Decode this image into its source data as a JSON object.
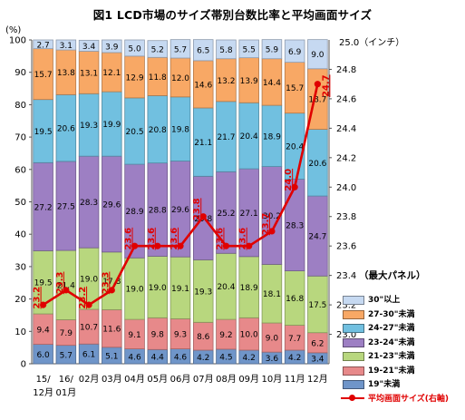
{
  "title": "図1 LCD市場のサイズ帯別台数比率と平均画面サイズ",
  "left_axis_unit": "(%)",
  "right_axis_unit": "25.0（インチ）",
  "legend_title": "（最大パネル）",
  "chart_data": {
    "type": "bar",
    "stacked": true,
    "categories": [
      "15/12月",
      "16/01月",
      "02月",
      "03月",
      "04月",
      "05月",
      "06月",
      "07月",
      "08月",
      "09月",
      "10月",
      "11月",
      "12月"
    ],
    "x_tick_lines": [
      [
        "15/",
        "16/",
        "02月",
        "03月",
        "04月",
        "05月",
        "06月",
        "07月",
        "08月",
        "09月",
        "10月",
        "11月",
        "12月"
      ],
      [
        "12月",
        "01月",
        "",
        "",
        "",
        "",
        "",
        "",
        "",
        "",
        "",
        "",
        ""
      ]
    ],
    "ylim": [
      0,
      100
    ],
    "yticks": [
      0,
      10,
      20,
      30,
      40,
      50,
      60,
      70,
      80,
      90,
      100
    ],
    "y2lim": [
      22.8,
      25.0
    ],
    "y2ticks": [
      "23.0",
      "23.2",
      "23.4",
      "23.6",
      "23.8",
      "24.0",
      "24.2",
      "24.4",
      "24.6",
      "24.8"
    ],
    "series": [
      {
        "name": "19\"未満",
        "color": "#6f95c9",
        "values": [
          6.0,
          5.7,
          6.1,
          5.1,
          4.6,
          4.4,
          4.6,
          4.2,
          4.5,
          4.2,
          3.6,
          4.2,
          3.4
        ],
        "labels": [
          "6.0",
          "5.7",
          "6.1",
          "5.1",
          "4.6",
          "4.4",
          "4.6",
          "4.2",
          "4.5",
          "4.2",
          "3.6",
          "4.2",
          "3.4"
        ]
      },
      {
        "name": "19-21\"未満",
        "color": "#e7898a",
        "values": [
          9.4,
          7.9,
          10.7,
          11.6,
          9.1,
          9.8,
          9.3,
          8.6,
          9.2,
          10.0,
          9.0,
          7.7,
          6.2
        ],
        "labels": [
          "9.4",
          "7.9",
          "10.7",
          "11.6",
          "9.1",
          "9.8",
          "9.3",
          "8.6",
          "9.2",
          "10.0",
          "9.0",
          "7.7",
          "6.2"
        ]
      },
      {
        "name": "21-23\"未満",
        "color": "#b8d77e",
        "values": [
          19.5,
          21.4,
          19.0,
          17.8,
          19.0,
          19.0,
          19.1,
          19.3,
          20.4,
          18.9,
          18.1,
          16.8,
          17.5
        ],
        "labels": [
          "19.5",
          "21.4",
          "19.0",
          "17.8",
          "19.0",
          "19.0",
          "19.1",
          "19.3",
          "20.4",
          "18.9",
          "18.1",
          "16.8",
          "17.5"
        ]
      },
      {
        "name": "23-24\"未満",
        "color": "#9d7fc3",
        "values": [
          27.2,
          27.5,
          28.3,
          29.6,
          28.9,
          28.8,
          29.6,
          25.8,
          25.2,
          27.1,
          30.2,
          28.3,
          24.7
        ],
        "labels": [
          "27.2",
          "27.5",
          "28.3",
          "29.6",
          "28.9",
          "28.8",
          "29.6",
          "25.8",
          "25.2",
          "27.1",
          "30.2",
          "28.3",
          "24.7"
        ]
      },
      {
        "name": "24-27\"未満",
        "color": "#71c0e0",
        "values": [
          19.5,
          20.6,
          19.3,
          19.9,
          20.5,
          20.8,
          19.8,
          21.1,
          21.7,
          20.4,
          18.9,
          20.4,
          20.6
        ],
        "labels": [
          "19.5",
          "20.6",
          "19.3",
          "19.9",
          "20.5",
          "20.8",
          "19.8",
          "21.1",
          "21.7",
          "20.4",
          "18.9",
          "20.4",
          "20.6"
        ]
      },
      {
        "name": "27-30\"未満",
        "color": "#f8a865",
        "values": [
          15.7,
          13.8,
          13.1,
          12.1,
          12.9,
          11.8,
          12.0,
          14.6,
          13.2,
          13.9,
          14.4,
          15.7,
          18.7
        ],
        "labels": [
          "15.7",
          "13.8",
          "13.1",
          "12.1",
          "12.9",
          "11.8",
          "12.0",
          "14.6",
          "13.2",
          "13.9",
          "14.4",
          "15.7",
          "18.7"
        ]
      },
      {
        "name": "30\"以上",
        "color": "#c6d9f1",
        "values": [
          2.7,
          3.1,
          3.4,
          3.9,
          5.0,
          5.2,
          5.7,
          6.5,
          5.8,
          5.5,
          5.9,
          6.9,
          9.0
        ],
        "labels": [
          "2.7",
          "3.1",
          "3.4",
          "3.9",
          "5.0",
          "5.2",
          "5.7",
          "6.5",
          "5.8",
          "5.5",
          "5.9",
          "6.9",
          "9.0"
        ]
      }
    ],
    "line_series": {
      "name": "平均画面サイズ(右軸)",
      "color": "#e00000",
      "values": [
        23.2,
        23.3,
        23.2,
        23.3,
        23.6,
        23.6,
        23.6,
        23.8,
        23.6,
        23.6,
        23.7,
        24.0,
        24.7
      ],
      "labels": [
        "23.2",
        "23.3",
        "23.2",
        "23.3",
        "23.6",
        "23.6",
        "23.6",
        "23.8",
        "23.6",
        "23.6",
        "23.7",
        "24.0",
        "24.7"
      ]
    }
  }
}
